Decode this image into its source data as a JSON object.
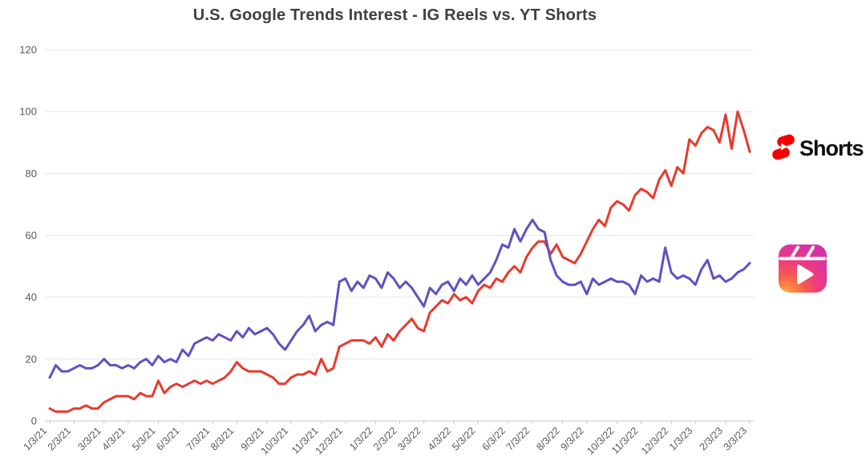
{
  "page": {
    "background": "#ffffff",
    "title_color": "#3f3f3f",
    "axis_text_color": "#595959",
    "gridline_color": "#e7e7e7",
    "axis_line_color": "#c9c9c9"
  },
  "chart_data": {
    "type": "line",
    "title": "U.S. Google Trends Interest - IG Reels vs. YT Shorts",
    "xlabel": "",
    "ylabel": "",
    "ylim": [
      0,
      120
    ],
    "yticks": [
      0,
      20,
      40,
      60,
      80,
      100,
      120
    ],
    "grid": "horizontal",
    "x_tick_labels": [
      "1/3/21",
      "2/3/21",
      "3/3/21",
      "4/3/21",
      "5/3/21",
      "6/3/21",
      "7/3/21",
      "8/3/21",
      "9/3/21",
      "10/3/21",
      "11/3/21",
      "12/3/21",
      "1/3/22",
      "2/3/22",
      "3/3/22",
      "4/3/22",
      "5/3/22",
      "6/3/22",
      "7/3/22",
      "8/3/22",
      "9/3/22",
      "10/3/22",
      "11/3/22",
      "12/3/22",
      "1/3/23",
      "2/3/23",
      "3/3/23"
    ],
    "x_tick_point_indices": [
      0,
      4,
      9,
      13,
      18,
      22,
      27,
      31,
      36,
      40,
      45,
      49,
      54,
      58,
      62,
      67,
      71,
      76,
      80,
      85,
      89,
      94,
      98,
      103,
      107,
      112,
      116
    ],
    "x_granularity": "weekly",
    "legend_position": "right",
    "series": [
      {
        "name": "YT Shorts",
        "color": "#e73b2d",
        "values": [
          4,
          3,
          3,
          3,
          4,
          4,
          5,
          4,
          4,
          6,
          7,
          8,
          8,
          8,
          7,
          9,
          8,
          8,
          13,
          9,
          11,
          12,
          11,
          12,
          13,
          12,
          13,
          12,
          13,
          14,
          16,
          19,
          17,
          16,
          16,
          16,
          15,
          14,
          12,
          12,
          14,
          15,
          15,
          16,
          15,
          20,
          16,
          17,
          24,
          25,
          26,
          26,
          26,
          25,
          27,
          24,
          28,
          26,
          29,
          31,
          33,
          30,
          29,
          35,
          37,
          39,
          38,
          41,
          39,
          40,
          38,
          42,
          44,
          43,
          46,
          45,
          48,
          50,
          48,
          53,
          56,
          58,
          58,
          54,
          57,
          53,
          52,
          51,
          54,
          58,
          62,
          65,
          63,
          69,
          71,
          70,
          68,
          73,
          75,
          74,
          72,
          78,
          81,
          76,
          82,
          80,
          91,
          89,
          93,
          95,
          94,
          90,
          99,
          88,
          100,
          94,
          87
        ]
      },
      {
        "name": "IG Reels",
        "color": "#5f52c0",
        "values": [
          14,
          18,
          16,
          16,
          17,
          18,
          17,
          17,
          18,
          20,
          18,
          18,
          17,
          18,
          17,
          19,
          20,
          18,
          21,
          19,
          20,
          19,
          23,
          21,
          25,
          26,
          27,
          26,
          28,
          27,
          26,
          29,
          27,
          30,
          28,
          29,
          30,
          28,
          25,
          23,
          26,
          29,
          31,
          34,
          29,
          31,
          32,
          31,
          45,
          46,
          42,
          45,
          43,
          47,
          46,
          43,
          48,
          46,
          43,
          45,
          43,
          40,
          37,
          43,
          41,
          44,
          45,
          42,
          46,
          44,
          47,
          44,
          46,
          48,
          52,
          57,
          56,
          62,
          58,
          62,
          65,
          62,
          61,
          52,
          47,
          45,
          44,
          44,
          45,
          41,
          46,
          44,
          45,
          46,
          45,
          45,
          44,
          41,
          47,
          45,
          46,
          45,
          56,
          48,
          46,
          47,
          46,
          44,
          49,
          52,
          46,
          47,
          45,
          46,
          48,
          49,
          51
        ]
      }
    ]
  },
  "legend": {
    "shorts_label": "Shorts",
    "shorts_icon": "youtube-shorts-icon",
    "shorts_icon_color": "#f70000",
    "reels_icon": "instagram-reels-icon",
    "reels_gradient": [
      "#ffcb52",
      "#ff8f3f",
      "#f65c4d",
      "#ee3a81",
      "#d733a8",
      "#c02db4"
    ]
  }
}
